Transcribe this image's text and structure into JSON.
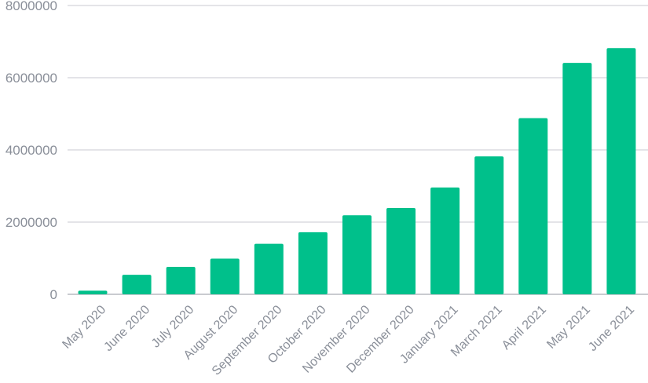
{
  "chart_data": {
    "type": "bar",
    "title": "",
    "xlabel": "",
    "ylabel": "",
    "categories": [
      "May 2020",
      "June 2020",
      "July 2020",
      "August 2020",
      "September 2020",
      "October 2020",
      "November 2020",
      "December 2020",
      "January 2021",
      "March 2021",
      "April 2021",
      "May 2021",
      "June 2021"
    ],
    "values": [
      100000,
      540000,
      760000,
      990000,
      1400000,
      1720000,
      2190000,
      2390000,
      2960000,
      3820000,
      4880000,
      6410000,
      6820000
    ],
    "ylim": [
      0,
      8000000
    ],
    "yticks": [
      "0",
      "2000000",
      "4000000",
      "6000000",
      "8000000"
    ],
    "grid": true,
    "legend": "none",
    "bar_color": "#00c08b"
  }
}
